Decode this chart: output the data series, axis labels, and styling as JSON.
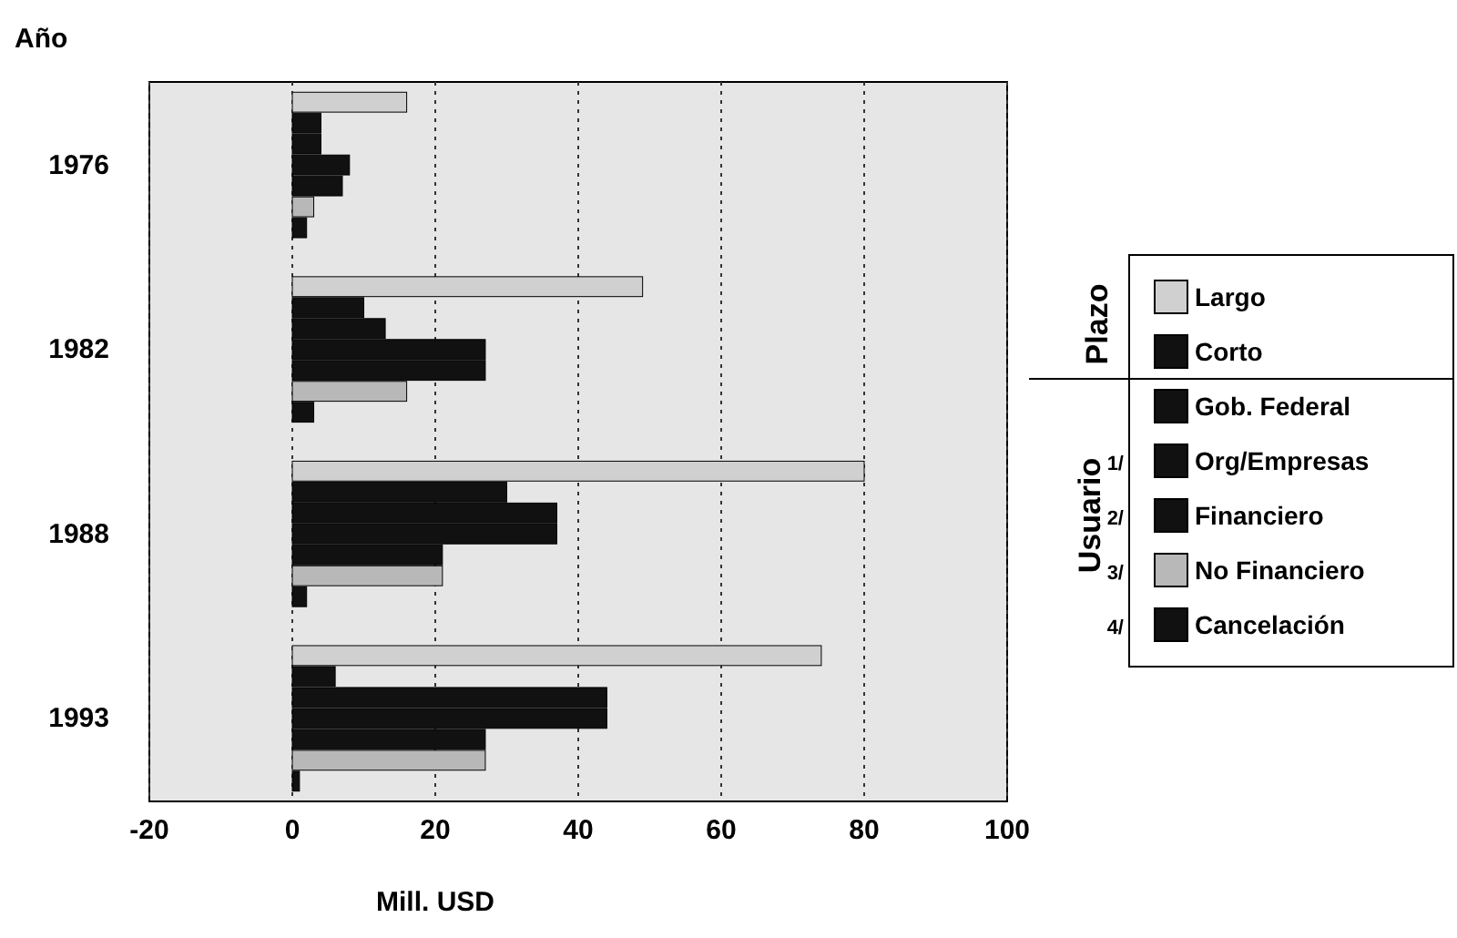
{
  "chart_data": {
    "type": "bar",
    "orientation": "horizontal",
    "ylabel": "Año",
    "xlabel": "Mill. USD",
    "categories": [
      "1976",
      "1982",
      "1988",
      "1993"
    ],
    "series": [
      {
        "name": "Largo",
        "color": "#d0d0d0",
        "values": [
          16,
          49,
          80,
          74
        ]
      },
      {
        "name": "Corto",
        "color": "#111111",
        "values": [
          4,
          10,
          30,
          6
        ]
      },
      {
        "name": "Gob. Federal",
        "color": "#111111",
        "values": [
          4,
          13,
          37,
          44
        ]
      },
      {
        "name": "Org/Empresas",
        "color": "#111111",
        "values": [
          8,
          27,
          37,
          44
        ]
      },
      {
        "name": "Financiero",
        "color": "#111111",
        "values": [
          7,
          27,
          21,
          27
        ]
      },
      {
        "name": "No Financiero",
        "color": "#b8b8b8",
        "values": [
          3,
          16,
          21,
          27
        ]
      },
      {
        "name": "Cancelación",
        "color": "#111111",
        "values": [
          2,
          3,
          2,
          1
        ]
      }
    ],
    "xlim": [
      -20,
      100
    ],
    "xticks": [
      -20,
      0,
      20,
      40,
      60,
      80,
      100
    ],
    "grid": "x",
    "legend": "right",
    "annotations": [
      "Plazo",
      "Usuario",
      "1/",
      "2/",
      "3/",
      "4/"
    ]
  }
}
